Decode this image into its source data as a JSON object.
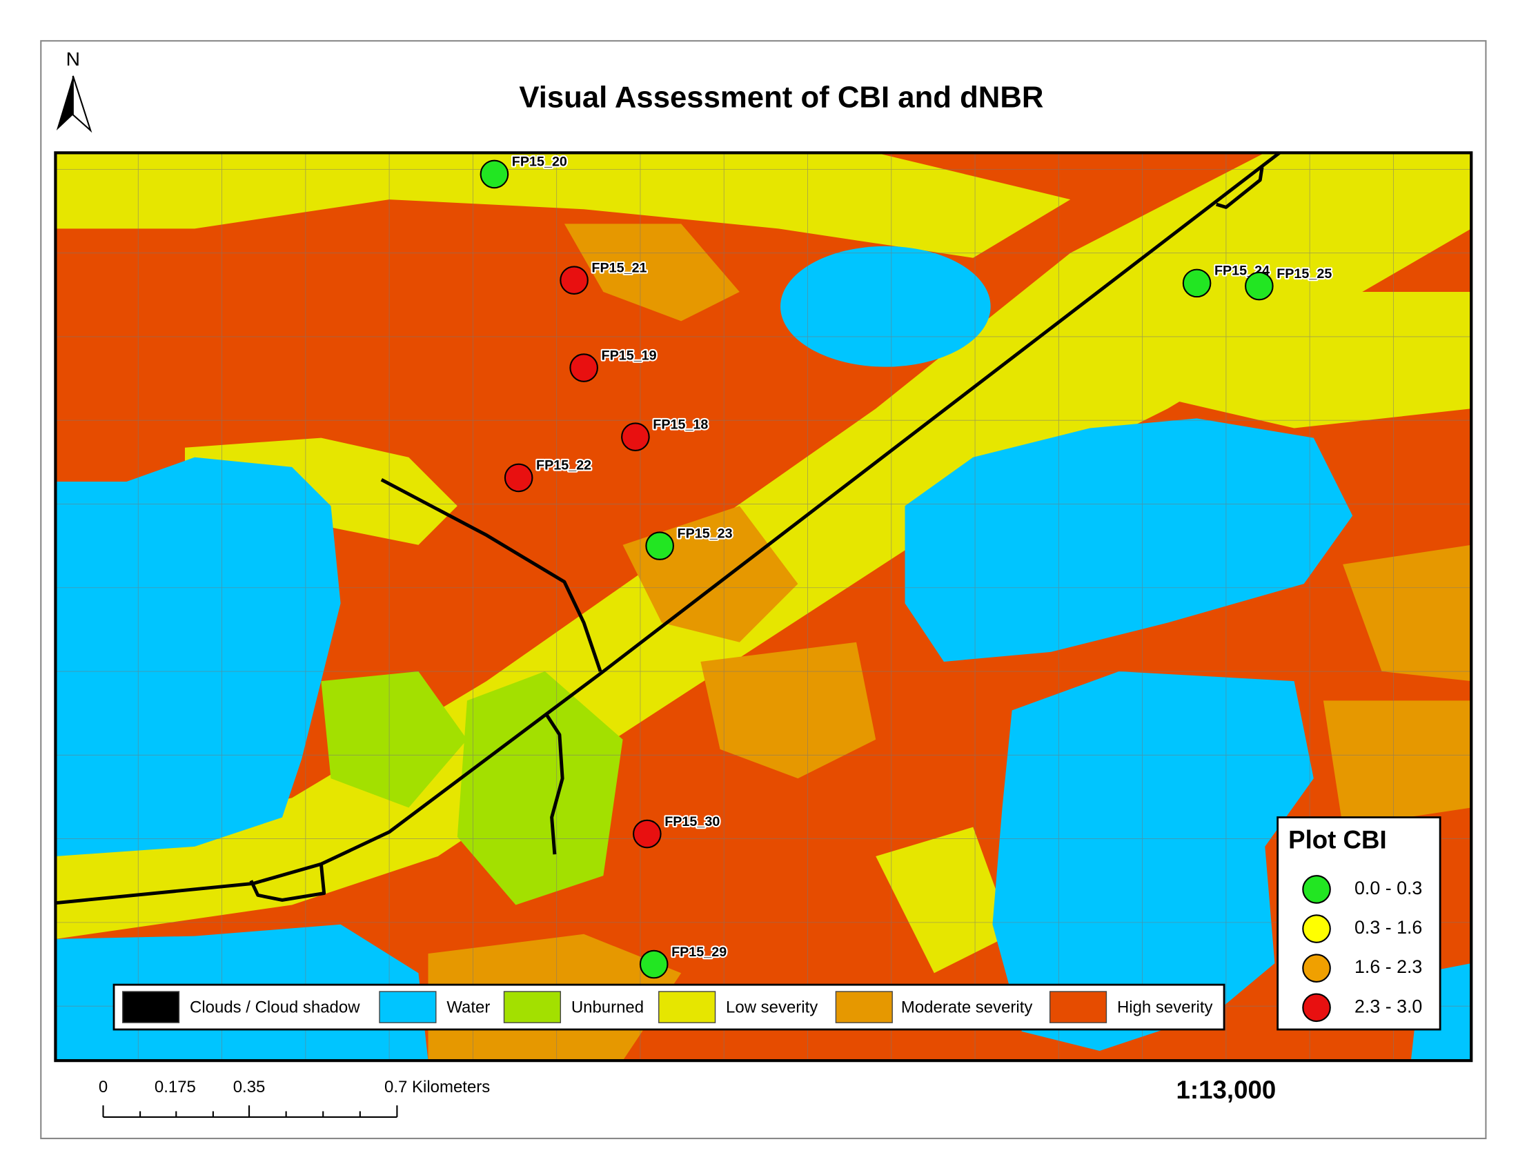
{
  "title": "Visual Assessment of CBI and dNBR",
  "north_arrow": "N",
  "plots": [
    {
      "label": "FP15_20",
      "color": "#22e622"
    },
    {
      "label": "FP15_21",
      "color": "#e81010"
    },
    {
      "label": "FP15_19",
      "color": "#e81010"
    },
    {
      "label": "FP15_18",
      "color": "#e81010"
    },
    {
      "label": "FP15_22",
      "color": "#e81010"
    },
    {
      "label": "FP15_23",
      "color": "#22e622"
    },
    {
      "label": "FP15_24",
      "color": "#22e622"
    },
    {
      "label": "FP15_25",
      "color": "#22e622"
    },
    {
      "label": "FP15_30",
      "color": "#e81010"
    },
    {
      "label": "FP15_29",
      "color": "#22e622"
    }
  ],
  "severity_legend": [
    {
      "label": "Clouds / Cloud shadow",
      "color": "#000000"
    },
    {
      "label": "Water",
      "color": "#00c5ff"
    },
    {
      "label": "Unburned",
      "color": "#a3e000"
    },
    {
      "label": "Low severity",
      "color": "#e6e600"
    },
    {
      "label": "Moderate severity",
      "color": "#e69800"
    },
    {
      "label": "High severity",
      "color": "#e64c00"
    }
  ],
  "cbi_legend": {
    "title": "Plot CBI",
    "items": [
      {
        "label": "0.0 - 0.3",
        "color": "#22e622"
      },
      {
        "label": "0.3 - 1.6",
        "color": "#ffff00"
      },
      {
        "label": "1.6 - 2.3",
        "color": "#f0a000"
      },
      {
        "label": "2.3 - 3.0",
        "color": "#e81010"
      }
    ]
  },
  "scale_bar": {
    "labels": [
      "0",
      "0.175",
      "0.35",
      "0.7 Kilometers"
    ]
  },
  "scale": "1:13,000"
}
